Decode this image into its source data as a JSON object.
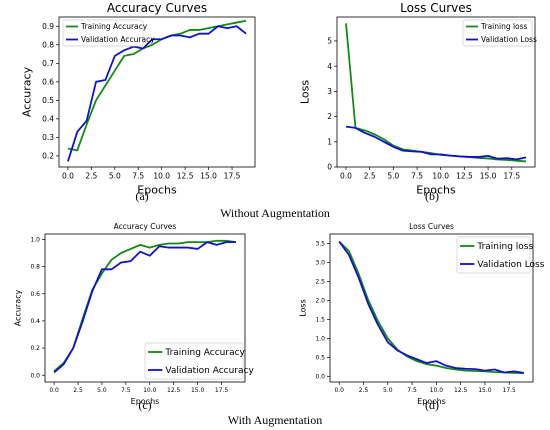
{
  "figure": {
    "row_captions": [
      "Without Augmentation",
      "With Augmentation"
    ],
    "panel_labels": [
      "(a)",
      "(b)",
      "(c)",
      "(d)"
    ]
  },
  "colors": {
    "training": "#138a13",
    "validation": "#1111cc"
  },
  "chart_data": [
    {
      "type": "line",
      "title": "Accuracy Curves",
      "xlabel": "Epochs",
      "ylabel": "Accuracy",
      "xlim": [
        -0.95,
        19.95
      ],
      "ylim": [
        0.14,
        0.95
      ],
      "xticks": [
        0.0,
        2.5,
        5.0,
        7.5,
        10.0,
        12.5,
        15.0,
        17.5
      ],
      "xtick_labels": [
        "0.0",
        "2.5",
        "5.0",
        "7.5",
        "10.0",
        "12.5",
        "15.0",
        "17.5"
      ],
      "yticks": [
        0.2,
        0.3,
        0.4,
        0.5,
        0.6,
        0.7,
        0.8,
        0.9
      ],
      "ytick_labels": [
        "0.2",
        "0.3",
        "0.4",
        "0.5",
        "0.6",
        "0.7",
        "0.8",
        "0.9"
      ],
      "legend": "top-left",
      "grid": false,
      "x": [
        0,
        1,
        2,
        3,
        4,
        5,
        6,
        7,
        8,
        9,
        10,
        11,
        12,
        13,
        14,
        15,
        16,
        17,
        18,
        19
      ],
      "series": [
        {
          "name": "Training Accuracy",
          "color": "#138a13",
          "values": [
            0.24,
            0.23,
            0.37,
            0.5,
            0.58,
            0.66,
            0.74,
            0.75,
            0.78,
            0.8,
            0.83,
            0.85,
            0.86,
            0.88,
            0.88,
            0.89,
            0.9,
            0.91,
            0.92,
            0.93
          ]
        },
        {
          "name": "Validation Accuracy",
          "color": "#1111cc",
          "values": [
            0.17,
            0.33,
            0.39,
            0.6,
            0.61,
            0.74,
            0.77,
            0.79,
            0.78,
            0.83,
            0.83,
            0.85,
            0.85,
            0.84,
            0.86,
            0.86,
            0.9,
            0.89,
            0.9,
            0.86
          ]
        }
      ]
    },
    {
      "type": "line",
      "title": "Loss Curves",
      "xlabel": "Epochs",
      "ylabel": "Loss",
      "xlim": [
        -0.95,
        19.95
      ],
      "ylim": [
        0,
        5.95
      ],
      "xticks": [
        0.0,
        2.5,
        5.0,
        7.5,
        10.0,
        12.5,
        15.0,
        17.5
      ],
      "xtick_labels": [
        "0.0",
        "2.5",
        "5.0",
        "7.5",
        "10.0",
        "12.5",
        "15.0",
        "17.5"
      ],
      "yticks": [
        0,
        1,
        2,
        3,
        4,
        5
      ],
      "ytick_labels": [
        "0",
        "1",
        "2",
        "3",
        "4",
        "5"
      ],
      "legend": "top-right",
      "grid": false,
      "x": [
        0,
        1,
        2,
        3,
        4,
        5,
        6,
        7,
        8,
        9,
        10,
        11,
        12,
        13,
        14,
        15,
        16,
        17,
        18,
        19
      ],
      "series": [
        {
          "name": "Training loss",
          "color": "#138a13",
          "values": [
            5.7,
            1.55,
            1.45,
            1.3,
            1.1,
            0.85,
            0.7,
            0.65,
            0.6,
            0.55,
            0.48,
            0.45,
            0.42,
            0.4,
            0.36,
            0.34,
            0.3,
            0.28,
            0.25,
            0.22
          ]
        },
        {
          "name": "Validation Loss",
          "color": "#1111cc",
          "values": [
            1.6,
            1.55,
            1.35,
            1.2,
            1.0,
            0.8,
            0.65,
            0.62,
            0.6,
            0.5,
            0.5,
            0.45,
            0.42,
            0.4,
            0.4,
            0.44,
            0.33,
            0.35,
            0.3,
            0.38
          ]
        }
      ]
    },
    {
      "type": "line",
      "title": "Accuracy Curves",
      "xlabel": "Epochs",
      "ylabel": "Accuracy",
      "xlim": [
        -0.95,
        19.95
      ],
      "ylim": [
        -0.05,
        1.04
      ],
      "xticks": [
        0.0,
        2.5,
        5.0,
        7.5,
        10.0,
        12.5,
        15.0,
        17.5
      ],
      "xtick_labels": [
        "0.0",
        "2.5",
        "5.0",
        "7.5",
        "10.0",
        "12.5",
        "15.0",
        "17.5"
      ],
      "yticks": [
        0.0,
        0.2,
        0.4,
        0.6,
        0.8,
        1.0
      ],
      "ytick_labels": [
        "0.0",
        "0.2",
        "0.4",
        "0.6",
        "0.8",
        "1.0"
      ],
      "legend": "bottom-right",
      "grid": false,
      "x": [
        0,
        1,
        2,
        3,
        4,
        5,
        6,
        7,
        8,
        9,
        10,
        11,
        12,
        13,
        14,
        15,
        16,
        17,
        18,
        19
      ],
      "series": [
        {
          "name": "Training Accuracy",
          "color": "#138a13",
          "values": [
            0.03,
            0.09,
            0.2,
            0.42,
            0.63,
            0.75,
            0.85,
            0.9,
            0.93,
            0.96,
            0.94,
            0.96,
            0.97,
            0.97,
            0.98,
            0.98,
            0.98,
            0.99,
            0.99,
            0.98
          ]
        },
        {
          "name": "Validation Accuracy",
          "color": "#1111cc",
          "values": [
            0.02,
            0.08,
            0.2,
            0.4,
            0.62,
            0.78,
            0.78,
            0.83,
            0.84,
            0.91,
            0.88,
            0.95,
            0.94,
            0.94,
            0.94,
            0.93,
            0.98,
            0.96,
            0.98,
            0.98
          ]
        }
      ]
    },
    {
      "type": "line",
      "title": "Loss Curves",
      "xlabel": "Epochs",
      "ylabel": "Loss",
      "xlim": [
        -0.95,
        19.95
      ],
      "ylim": [
        -0.15,
        3.75
      ],
      "xticks": [
        0.0,
        2.5,
        5.0,
        7.5,
        10.0,
        12.5,
        15.0,
        17.5
      ],
      "xtick_labels": [
        "0.0",
        "2.5",
        "5.0",
        "7.5",
        "10.0",
        "12.5",
        "15.0",
        "17.5"
      ],
      "yticks": [
        0.0,
        0.5,
        1.0,
        1.5,
        2.0,
        2.5,
        3.0,
        3.5
      ],
      "ytick_labels": [
        "0.0",
        "0.5",
        "1.0",
        "1.5",
        "2.0",
        "2.5",
        "3.0",
        "3.5"
      ],
      "legend": "top-right",
      "grid": false,
      "x": [
        0,
        1,
        2,
        3,
        4,
        5,
        6,
        7,
        8,
        9,
        10,
        11,
        12,
        13,
        14,
        15,
        16,
        17,
        18,
        19
      ],
      "series": [
        {
          "name": "Training loss",
          "color": "#138a13",
          "values": [
            3.55,
            3.3,
            2.7,
            2.0,
            1.45,
            1.0,
            0.7,
            0.52,
            0.4,
            0.32,
            0.28,
            0.22,
            0.18,
            0.15,
            0.14,
            0.13,
            0.11,
            0.1,
            0.09,
            0.08
          ]
        },
        {
          "name": "Validation Loss",
          "color": "#1111cc",
          "values": [
            3.55,
            3.2,
            2.6,
            1.9,
            1.35,
            0.9,
            0.68,
            0.55,
            0.45,
            0.35,
            0.4,
            0.28,
            0.22,
            0.2,
            0.19,
            0.15,
            0.18,
            0.1,
            0.13,
            0.09
          ]
        }
      ]
    }
  ]
}
